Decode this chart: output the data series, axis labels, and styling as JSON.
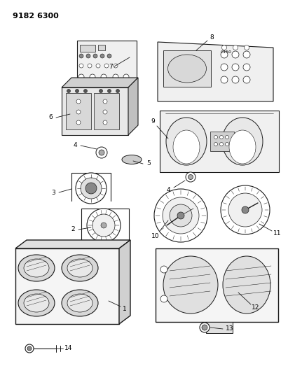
{
  "title": "9182 6300",
  "bg_color": "#ffffff",
  "lc": "#1a1a1a",
  "title_fontsize": 8,
  "label_fontsize": 6.5,
  "fig_width": 4.11,
  "fig_height": 5.33,
  "dpi": 100
}
